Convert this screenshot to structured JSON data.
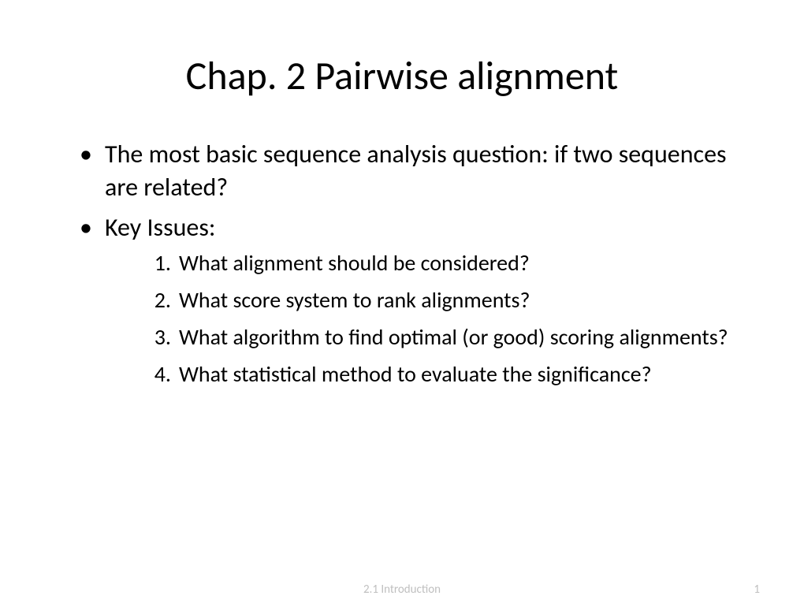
{
  "slide": {
    "title": "Chap. 2 Pairwise alignment",
    "bullets": [
      {
        "text": "The most basic sequence analysis question: if two sequences are related?"
      },
      {
        "text": "Key Issues:"
      }
    ],
    "numbered": [
      {
        "n": "1.",
        "text": "What alignment should be considered?"
      },
      {
        "n": "2.",
        "text": "What score system to rank alignments?"
      },
      {
        "n": "3.",
        "text": "What algorithm to find optimal (or good) scoring alignments?"
      },
      {
        "n": "4.",
        "text": "What statistical method to evaluate the significance?"
      }
    ],
    "footer": {
      "center": "2.1 Introduction",
      "page": "1"
    }
  },
  "style": {
    "background_color": "#ffffff",
    "text_color": "#000000",
    "footer_color": "#bfbfbf",
    "title_fontsize": 50,
    "body_fontsize": 32,
    "sub_fontsize": 28,
    "footer_fontsize": 15,
    "font_family": "Calibri"
  }
}
